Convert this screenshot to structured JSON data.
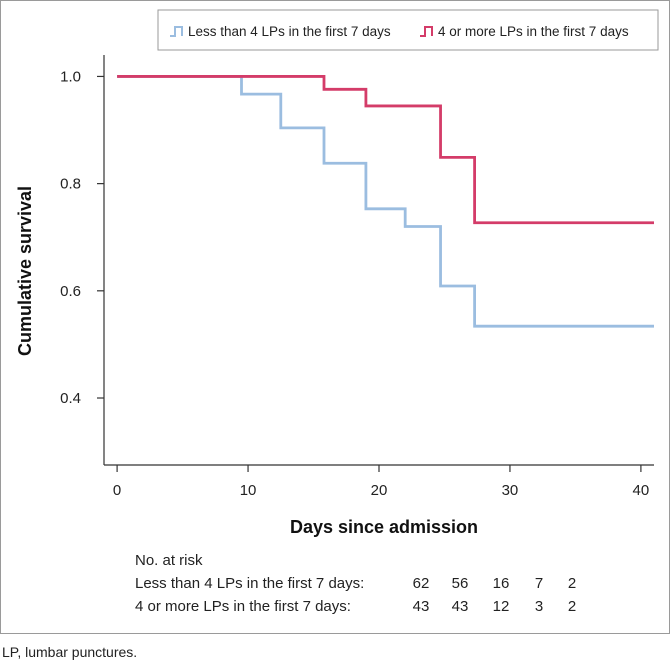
{
  "chart_data": {
    "type": "line",
    "step": true,
    "xlabel": "Days since admission",
    "ylabel": "Cumulative survival",
    "xlim": [
      -1,
      41
    ],
    "ylim": [
      0.275,
      1.04
    ],
    "xticks": [
      0,
      10,
      20,
      30,
      40
    ],
    "yticks": [
      0.4,
      0.6,
      0.8,
      1.0
    ],
    "ytick_labels": [
      "0.4",
      "0.6",
      "0.8",
      "1.0"
    ],
    "grid": false,
    "legend_position": "top",
    "series": [
      {
        "name": "Less than 4 LPs in the first 7 days",
        "color": "#9bbde0",
        "points": [
          [
            0,
            1.0
          ],
          [
            9.5,
            0.967
          ],
          [
            12.5,
            0.904
          ],
          [
            15.8,
            0.838
          ],
          [
            19.0,
            0.753
          ],
          [
            22.0,
            0.72
          ],
          [
            24.7,
            0.609
          ],
          [
            27.3,
            0.534
          ],
          [
            41,
            0.534
          ]
        ]
      },
      {
        "name": "4 or more LPs in the first 7 days",
        "color": "#d43c69",
        "points": [
          [
            0,
            1.0
          ],
          [
            15.8,
            0.976
          ],
          [
            19.0,
            0.945
          ],
          [
            24.7,
            0.849
          ],
          [
            27.3,
            0.727
          ],
          [
            41,
            0.727
          ]
        ]
      }
    ]
  },
  "risk_table": {
    "title": "No. at risk",
    "rows": [
      {
        "label": "Less than 4 LPs in the first 7 days:",
        "values": [
          "62",
          "56",
          "16",
          "7",
          "2"
        ]
      },
      {
        "label": "4 or more LPs in the first 7 days:",
        "values": [
          "43",
          "43",
          "12",
          "3",
          "2"
        ]
      }
    ]
  },
  "footnote": "LP, lumbar punctures."
}
